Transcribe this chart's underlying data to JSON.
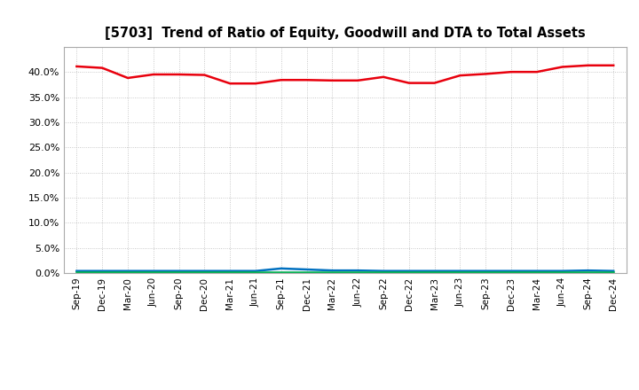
{
  "title": "[5703]  Trend of Ratio of Equity, Goodwill and DTA to Total Assets",
  "x_labels": [
    "Sep-19",
    "Dec-19",
    "Mar-20",
    "Jun-20",
    "Sep-20",
    "Dec-20",
    "Mar-21",
    "Jun-21",
    "Sep-21",
    "Dec-21",
    "Mar-22",
    "Jun-22",
    "Sep-22",
    "Dec-22",
    "Mar-23",
    "Jun-23",
    "Sep-23",
    "Dec-23",
    "Mar-24",
    "Jun-24",
    "Sep-24",
    "Dec-24"
  ],
  "equity": [
    41.1,
    40.8,
    38.8,
    39.5,
    39.5,
    39.4,
    37.7,
    37.7,
    38.4,
    38.4,
    38.3,
    38.3,
    39.0,
    37.8,
    37.8,
    39.3,
    39.6,
    40.0,
    40.0,
    41.0,
    41.3,
    41.3
  ],
  "goodwill": [
    0.4,
    0.4,
    0.4,
    0.4,
    0.4,
    0.4,
    0.4,
    0.4,
    0.9,
    0.7,
    0.5,
    0.5,
    0.4,
    0.4,
    0.4,
    0.4,
    0.4,
    0.4,
    0.4,
    0.4,
    0.5,
    0.4
  ],
  "dta": [
    0.25,
    0.25,
    0.25,
    0.25,
    0.25,
    0.25,
    0.25,
    0.25,
    0.25,
    0.25,
    0.25,
    0.25,
    0.25,
    0.25,
    0.25,
    0.25,
    0.25,
    0.25,
    0.25,
    0.25,
    0.25,
    0.25
  ],
  "equity_color": "#e8000d",
  "goodwill_color": "#0070c0",
  "dta_color": "#00b050",
  "background_color": "#ffffff",
  "plot_bg_color": "#ffffff",
  "grid_color": "#bbbbbb",
  "ylim": [
    0,
    45
  ],
  "yticks": [
    0.0,
    5.0,
    10.0,
    15.0,
    20.0,
    25.0,
    30.0,
    35.0,
    40.0
  ],
  "line_width": 1.8
}
